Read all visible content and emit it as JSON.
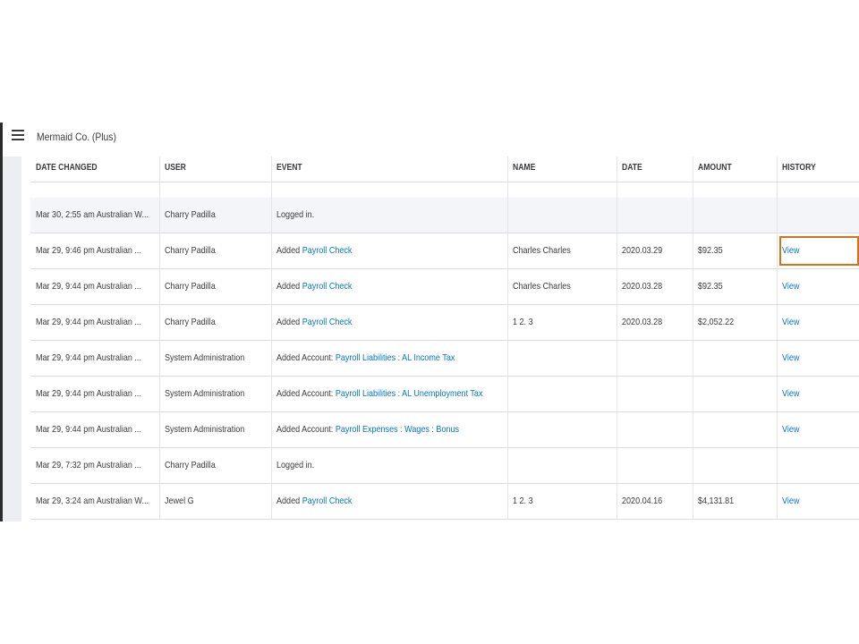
{
  "header": {
    "title": "Mermaid Co. (Plus)"
  },
  "table": {
    "columns": [
      "DATE CHANGED",
      "USER",
      "EVENT",
      "NAME",
      "DATE",
      "AMOUNT",
      "HISTORY"
    ],
    "rows": [
      {
        "date_changed": "Mar 30, 2:55 am Australian W...",
        "user": "Charry Padilla",
        "event": {
          "action": "Logged in."
        }
      },
      {
        "date_changed": "Mar 29, 9:46 pm Australian ...",
        "user": "Charry Padilla",
        "event": {
          "action": "Added",
          "link": "Payroll Check"
        },
        "name": "Charles Charles",
        "date": "2020.03.29",
        "amount": "$92.35",
        "history": "View"
      },
      {
        "date_changed": "Mar 29, 9:44 pm Australian ...",
        "user": "Charry Padilla",
        "event": {
          "action": "Added",
          "link": "Payroll Check"
        },
        "name": "Charles Charles",
        "date": "2020.03.28",
        "amount": "$92.35",
        "history": "View"
      },
      {
        "date_changed": "Mar 29, 9:44 pm Australian ...",
        "user": "Charry Padilla",
        "event": {
          "action": "Added",
          "link": "Payroll Check"
        },
        "name": "1 2. 3",
        "date": "2020.03.28",
        "amount": "$2,052.22",
        "history": "View"
      },
      {
        "date_changed": "Mar 29, 9:44 pm Australian ...",
        "user": "System Administration",
        "event": {
          "action": "Added Account:",
          "link": "Payroll Liabilities : AL Income Tax"
        },
        "history": "View"
      },
      {
        "date_changed": "Mar 29, 9:44 pm Australian ...",
        "user": "System Administration",
        "event": {
          "action": "Added Account:",
          "link": "Payroll Liabilities : AL Unemployment Tax"
        },
        "history": "View"
      },
      {
        "date_changed": "Mar 29, 9:44 pm Australian ...",
        "user": "System Administration",
        "event": {
          "action": "Added Account:",
          "link": "Payroll Expenses : Wages : Bonus"
        },
        "history": "View"
      },
      {
        "date_changed": "Mar 29, 7:32 pm Australian ...",
        "user": "Charry Padilla",
        "event": {
          "action": "Logged in."
        }
      },
      {
        "date_changed": "Mar 29, 3:24 am Australian W...",
        "user": "Jewel G",
        "event": {
          "action": "Added",
          "link": "Payroll Check"
        },
        "name": "1 2. 3",
        "date": "2020.04.16",
        "amount": "$4,131.81",
        "history": "View"
      }
    ]
  }
}
